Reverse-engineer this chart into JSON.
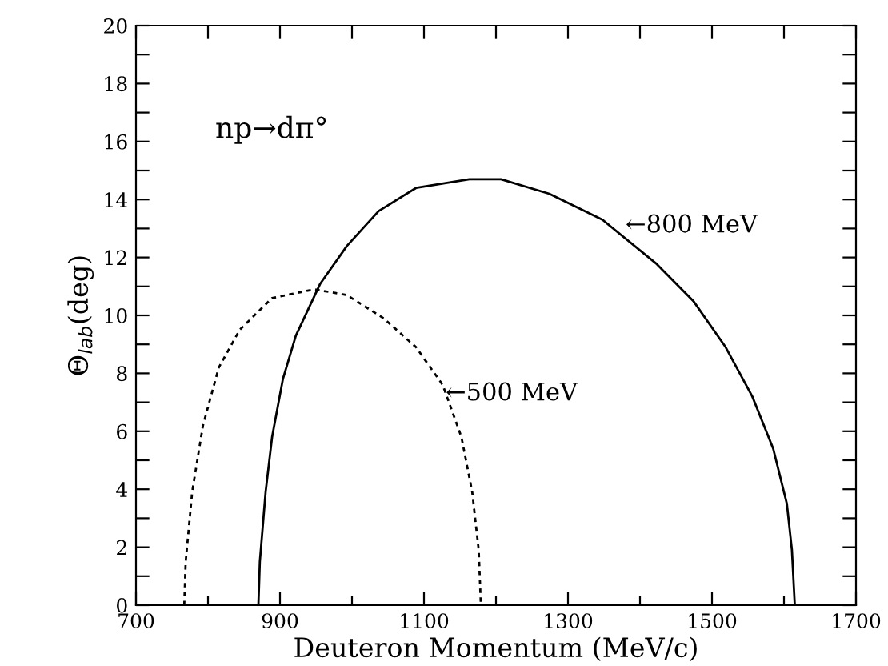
{
  "chart_data": {
    "type": "line",
    "xlabel": "Deuteron Momentum (MeV/c)",
    "ylabel": "Θ$_{lab}$(deg)",
    "series": [
      {
        "color": "#000000",
        "line_style": "dotted",
        "x": [
          767,
          769,
          778,
          793,
          815,
          844,
          889,
          948,
          993,
          1044,
          1089,
          1126,
          1152,
          1167,
          1176,
          1179
        ],
        "values": [
          0,
          1.5,
          3.9,
          6.2,
          8.2,
          9.5,
          10.6,
          10.9,
          10.7,
          9.9,
          8.9,
          7.6,
          5.8,
          3.9,
          1.9,
          0
        ]
      },
      {
        "color": "#000000",
        "line_style": "solid",
        "x": [
          870,
          872,
          880,
          889,
          904,
          922,
          956,
          993,
          1037,
          1089,
          1163,
          1207,
          1274,
          1348,
          1422,
          1474,
          1519,
          1556,
          1585,
          1604,
          1611,
          1615
        ],
        "values": [
          0,
          1.5,
          3.9,
          5.8,
          7.8,
          9.3,
          11.1,
          12.4,
          13.6,
          14.4,
          14.7,
          14.7,
          14.2,
          13.3,
          11.8,
          10.5,
          8.9,
          7.2,
          5.4,
          3.5,
          1.9,
          0
        ]
      }
    ],
    "annotations": [
      "np→dπ°",
      "←800 MeV",
      "←500 MeV"
    ],
    "xlim": [
      700,
      1700
    ],
    "ylim": [
      0,
      20
    ],
    "xticks": [
      700,
      {
        "value": 800,
        "label": null
      },
      900,
      {
        "value": 1000,
        "label": null
      },
      1100,
      {
        "value": 1200,
        "label": null
      },
      1300,
      {
        "value": 1400,
        "label": null
      },
      1500,
      {
        "value": 1600,
        "label": null
      },
      1700
    ],
    "yticks": [
      0,
      {
        "value": 1,
        "label": null
      },
      2,
      {
        "value": 3,
        "label": null
      },
      4,
      {
        "value": 5,
        "label": null
      },
      6,
      {
        "value": 7,
        "label": null
      },
      8,
      {
        "value": 9,
        "label": null
      },
      10,
      {
        "value": 11,
        "label": null
      },
      12,
      {
        "value": 13,
        "label": null
      },
      14,
      {
        "value": 15,
        "label": null
      },
      16,
      {
        "value": 17,
        "label": null
      },
      18,
      {
        "value": 19,
        "label": null
      },
      20
    ],
    "grid": false,
    "legend": false,
    "marker": "none"
  }
}
